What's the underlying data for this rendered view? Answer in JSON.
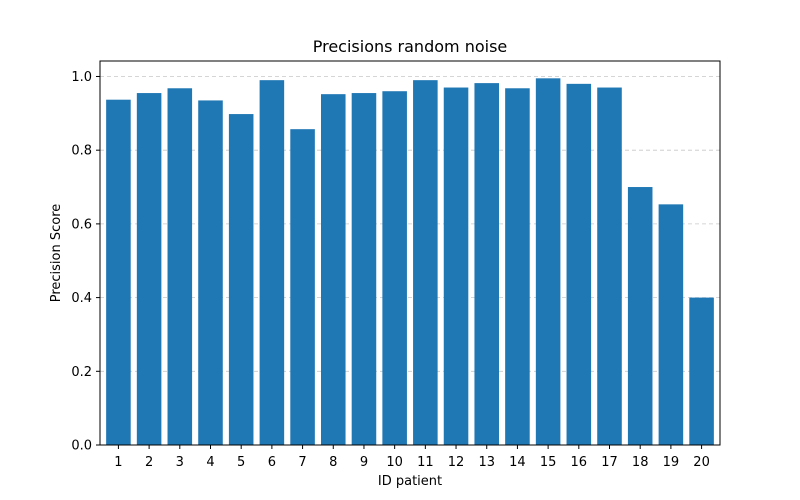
{
  "chart_data": {
    "type": "bar",
    "title": "Precisions random noise",
    "xlabel": "ID patient",
    "ylabel": "Precision Score",
    "categories": [
      "1",
      "2",
      "3",
      "4",
      "5",
      "6",
      "7",
      "8",
      "9",
      "10",
      "11",
      "12",
      "13",
      "14",
      "15",
      "16",
      "17",
      "18",
      "19",
      "20"
    ],
    "values": [
      0.937,
      0.955,
      0.968,
      0.935,
      0.898,
      0.99,
      0.857,
      0.952,
      0.955,
      0.96,
      0.99,
      0.97,
      0.982,
      0.968,
      0.995,
      0.98,
      0.97,
      0.7,
      0.653,
      0.4
    ],
    "ylim": [
      0,
      1.0
    ],
    "yticks": [
      "0.0",
      "0.2",
      "0.4",
      "0.6",
      "0.8",
      "1.0"
    ],
    "grid": "y-dashed",
    "bar_color": "#1f77b4",
    "grid_color": "#c8c8c8"
  }
}
